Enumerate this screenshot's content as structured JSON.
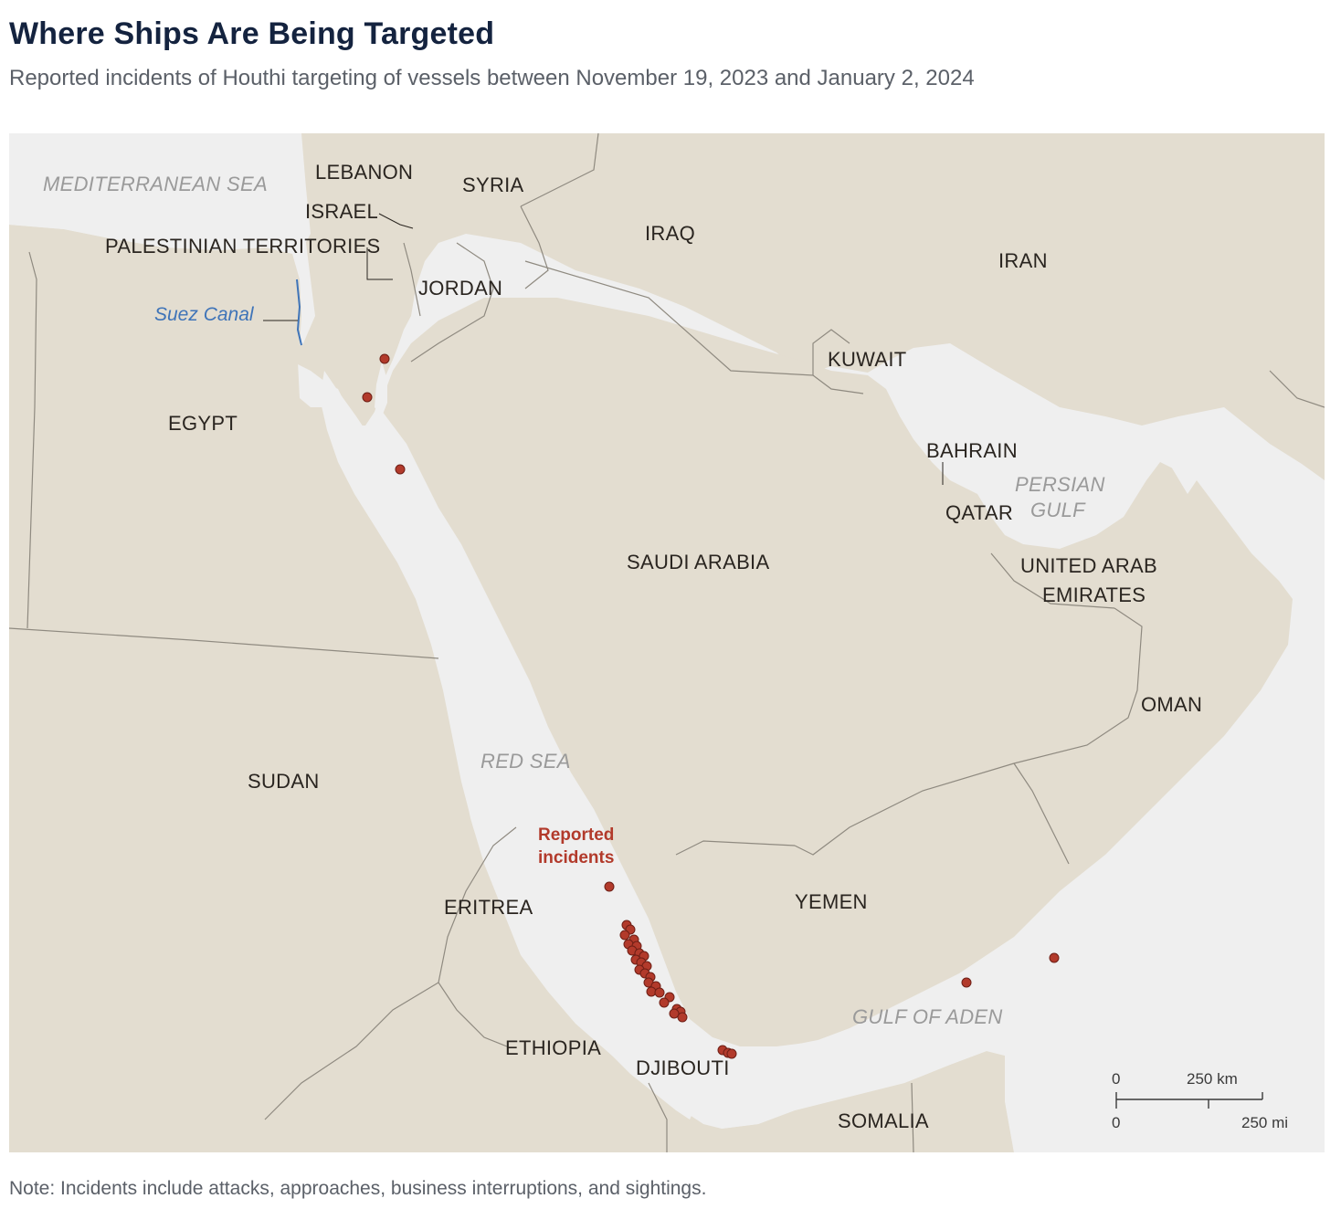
{
  "header": {
    "title": "Where Ships Are Being Targeted",
    "subtitle": "Reported incidents of Houthi targeting of vessels between November 19, 2023 and January 2, 2024"
  },
  "footer": {
    "note": "Note: Incidents include attacks, approaches, business interruptions, and sightings."
  },
  "map": {
    "countries": {
      "lebanon": "LEBANON",
      "syria": "SYRIA",
      "israel": "ISRAEL",
      "palestinian_territories": "PALESTINIAN TERRITORIES",
      "jordan": "JORDAN",
      "iraq": "IRAQ",
      "iran": "IRAN",
      "kuwait": "KUWAIT",
      "egypt": "EGYPT",
      "bahrain": "BAHRAIN",
      "qatar": "QATAR",
      "saudi_arabia": "SAUDI ARABIA",
      "uae_line1": "UNITED ARAB",
      "uae_line2": "EMIRATES",
      "oman": "OMAN",
      "sudan": "SUDAN",
      "eritrea": "ERITREA",
      "yemen": "YEMEN",
      "ethiopia": "ETHIOPIA",
      "djibouti": "DJIBOUTI",
      "somalia": "SOMALIA"
    },
    "seas": {
      "mediterranean": "MEDITERRANEAN SEA",
      "persian_gulf_line1": "PERSIAN",
      "persian_gulf_line2": "GULF",
      "red_sea": "RED SEA",
      "gulf_of_aden": "GULF OF ADEN"
    },
    "canal_label": "Suez Canal",
    "incident_label_line1": "Reported",
    "incident_label_line2": "incidents",
    "scale": {
      "km_zero": "0",
      "km_label": "250 km",
      "mi_zero": "0",
      "mi_label": "250 mi"
    },
    "colors": {
      "land": "#e3ddd0",
      "water": "#efefef",
      "border": "#8f8a80",
      "incident": "#b23a2b",
      "canal": "#3f74b8"
    },
    "incident_count_note": "Reported incidents"
  }
}
